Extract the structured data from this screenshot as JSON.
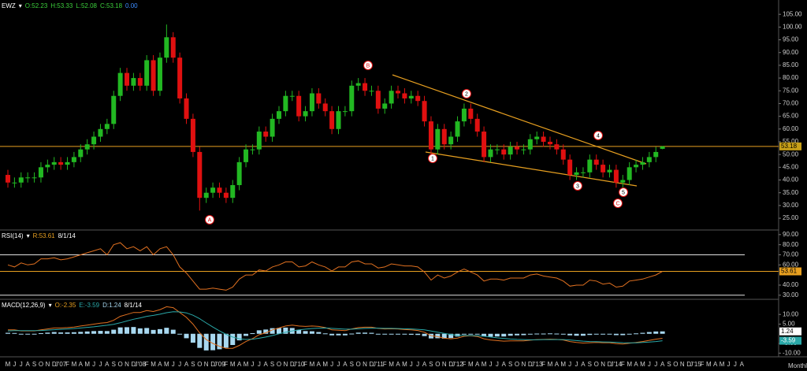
{
  "chart_data": [
    {
      "type": "candlestick",
      "symbol": "EWZ",
      "header": [
        {
          "text": "EWZ",
          "color": "#ffffff"
        },
        {
          "text": "▾",
          "color": "#ffffff"
        },
        {
          "text": "O:52.23",
          "color": "#3cd03c"
        },
        {
          "text": "H:53.33",
          "color": "#3cd03c"
        },
        {
          "text": "L:52.08",
          "color": "#3cd03c"
        },
        {
          "text": "C:53.18",
          "color": "#3cd03c"
        },
        {
          "text": "0.00",
          "color": "#3c8cff"
        }
      ],
      "up_color": "#22b822",
      "down_color": "#e01010",
      "last_line_color": "#e8a020",
      "open": [
        42,
        39,
        39,
        41,
        41,
        41,
        45,
        46,
        47,
        46,
        47,
        49,
        52,
        54,
        57,
        60,
        62,
        73,
        82,
        77,
        80,
        77,
        87,
        75,
        88,
        96,
        88,
        72,
        64,
        51,
        33,
        35,
        37,
        35,
        33,
        38,
        47,
        52,
        52,
        59,
        57,
        64,
        67,
        73,
        73,
        65,
        67,
        74,
        70,
        67,
        60,
        67,
        67,
        77,
        78,
        75,
        75,
        68,
        70,
        75,
        74,
        72,
        73,
        71,
        63,
        52,
        60,
        54,
        57,
        63,
        68,
        64,
        59,
        49,
        52,
        52,
        50,
        53,
        52,
        52,
        56,
        57,
        55,
        54,
        52,
        48,
        42,
        43,
        43,
        48,
        46,
        43,
        44,
        39,
        40,
        45,
        46,
        47,
        49,
        52.23
      ],
      "high": [
        44,
        41,
        43,
        43,
        43,
        47,
        48,
        49,
        49,
        49,
        51,
        54,
        56,
        59,
        62,
        64,
        75,
        84,
        84,
        82,
        82,
        89,
        89,
        90,
        101,
        98,
        90,
        74,
        66,
        53,
        37,
        39,
        39,
        37,
        40,
        49,
        54,
        54,
        61,
        61,
        66,
        69,
        75,
        75,
        75,
        69,
        76,
        76,
        72,
        69,
        69,
        69,
        79,
        80,
        80,
        77,
        77,
        72,
        77,
        77,
        76,
        75,
        75,
        73,
        65,
        62,
        62,
        59,
        65,
        70,
        70,
        66,
        61,
        54,
        54,
        54,
        55,
        55,
        54,
        58,
        59,
        59,
        57,
        56,
        54,
        50,
        45,
        45,
        50,
        50,
        48,
        46,
        46,
        42,
        47,
        48,
        49,
        51,
        53,
        53.33
      ],
      "low": [
        37,
        37,
        37,
        39,
        39,
        39,
        43,
        44,
        44,
        44,
        45,
        47,
        50,
        52,
        55,
        58,
        60,
        71,
        75,
        75,
        75,
        75,
        73,
        73,
        86,
        86,
        70,
        62,
        49,
        28,
        31,
        33,
        33,
        31,
        31,
        36,
        45,
        50,
        50,
        55,
        55,
        62,
        65,
        71,
        63,
        63,
        65,
        68,
        65,
        58,
        58,
        65,
        65,
        75,
        73,
        73,
        66,
        66,
        68,
        72,
        70,
        70,
        69,
        61,
        50,
        50,
        52,
        52,
        55,
        61,
        62,
        57,
        47,
        47,
        50,
        48,
        48,
        50,
        50,
        50,
        54,
        53,
        52,
        50,
        46,
        40,
        40,
        41,
        41,
        44,
        41,
        41,
        37,
        37,
        38,
        43,
        44,
        45,
        47,
        52.08
      ],
      "close": [
        39,
        39,
        41,
        41,
        41,
        45,
        46,
        47,
        46,
        47,
        49,
        52,
        54,
        57,
        60,
        62,
        73,
        82,
        77,
        80,
        77,
        87,
        75,
        88,
        96,
        88,
        72,
        64,
        51,
        33,
        35,
        37,
        35,
        33,
        38,
        47,
        52,
        52,
        59,
        57,
        64,
        67,
        73,
        73,
        65,
        67,
        74,
        70,
        67,
        60,
        67,
        67,
        77,
        78,
        75,
        75,
        68,
        70,
        75,
        74,
        72,
        73,
        71,
        63,
        52,
        60,
        54,
        57,
        63,
        68,
        64,
        59,
        49,
        52,
        52,
        50,
        53,
        52,
        52,
        56,
        57,
        55,
        54,
        52,
        48,
        42,
        43,
        43,
        48,
        46,
        43,
        44,
        39,
        40,
        45,
        46,
        47,
        49,
        51,
        53.18
      ],
      "ylim": [
        21,
        110
      ],
      "yticks": [
        {
          "value": 105,
          "label": "105.00"
        },
        {
          "value": 100,
          "label": "100.00"
        },
        {
          "value": 95,
          "label": "95.00"
        },
        {
          "value": 90,
          "label": "90.00"
        },
        {
          "value": 85,
          "label": "85.00"
        },
        {
          "value": 80,
          "label": "80.00"
        },
        {
          "value": 75,
          "label": "75.00"
        },
        {
          "value": 70,
          "label": "70.00"
        },
        {
          "value": 65,
          "label": "65.00"
        },
        {
          "value": 60,
          "label": "60.00"
        },
        {
          "value": 55,
          "label": "55.00"
        },
        {
          "value": 50,
          "label": "50.00"
        },
        {
          "value": 45,
          "label": "45.00"
        },
        {
          "value": 40,
          "label": "40.00"
        },
        {
          "value": 35,
          "label": "35.00"
        },
        {
          "value": 30,
          "label": "30.00"
        },
        {
          "value": 25,
          "label": "25.00"
        }
      ],
      "annotations": [
        "A",
        "B",
        "C",
        "1",
        "2",
        "3",
        "4",
        "5"
      ]
    },
    {
      "type": "line",
      "header": [
        {
          "text": "RSI(14)",
          "color": "#ffffff"
        },
        {
          "text": "▾",
          "color": "#ffffff"
        },
        {
          "text": "R:53.61",
          "color": "#e8a020"
        },
        {
          "text": "8/1/14",
          "color": "#ffffff"
        }
      ],
      "series": [
        {
          "name": "RSI(14)",
          "color": "#e07020",
          "values": [
            60,
            58,
            62,
            60,
            61,
            66,
            66,
            67,
            65,
            66,
            68,
            70,
            72,
            74,
            76,
            70,
            80,
            82,
            76,
            78,
            74,
            78,
            70,
            76,
            78,
            70,
            58,
            52,
            44,
            36,
            36,
            37,
            36,
            35,
            38,
            46,
            50,
            50,
            55,
            54,
            58,
            60,
            63,
            63,
            58,
            59,
            63,
            60,
            58,
            54,
            58,
            58,
            63,
            64,
            61,
            61,
            57,
            58,
            61,
            60,
            59,
            59,
            58,
            53,
            45,
            50,
            47,
            49,
            53,
            56,
            53,
            50,
            44,
            46,
            46,
            45,
            47,
            47,
            47,
            50,
            51,
            49,
            48,
            47,
            44,
            39,
            40,
            40,
            45,
            44,
            41,
            42,
            38,
            39,
            44,
            45,
            46,
            48,
            50,
            53.61
          ]
        }
      ],
      "ylim": [
        27.5,
        93
      ],
      "yticks": [
        {
          "value": 90,
          "label": "90.00"
        },
        {
          "value": 80,
          "label": "80.00"
        },
        {
          "value": 70,
          "label": "70.00"
        },
        {
          "value": 60,
          "label": "60.00"
        },
        {
          "value": 40,
          "label": "40.00"
        },
        {
          "value": 30,
          "label": "30.00"
        }
      ],
      "levels": [
        70,
        30
      ]
    },
    {
      "type": "macd",
      "header": [
        {
          "text": "MACD(12,26,9)",
          "color": "#ffffff"
        },
        {
          "text": "▾",
          "color": "#ffffff"
        },
        {
          "text": "O:-2.35",
          "color": "#e8a020"
        },
        {
          "text": "E:-3.59",
          "color": "#2aa8a8"
        },
        {
          "text": "D:1.24",
          "color": "#a8d8f0"
        },
        {
          "text": "8/1/14",
          "color": "#ffffff"
        }
      ],
      "series": [
        {
          "name": "MACD",
          "color": "#e07020",
          "values": [
            2,
            2,
            1.5,
            1.5,
            1.5,
            2,
            2.5,
            3,
            3,
            3.2,
            3.5,
            4,
            4.5,
            5,
            5.5,
            5.8,
            7,
            9,
            10,
            11,
            11,
            12,
            11.5,
            12.5,
            14,
            13.5,
            11,
            8.5,
            5,
            0.5,
            -3,
            -5,
            -6.5,
            -7.5,
            -7.5,
            -6,
            -4,
            -2.5,
            -0.5,
            0.5,
            2,
            3,
            4,
            4.5,
            4,
            3.8,
            4,
            3.8,
            3.2,
            2,
            1.8,
            1.6,
            2.5,
            3.2,
            3.4,
            3.4,
            2.8,
            2.5,
            2.6,
            2.5,
            2.2,
            2,
            1.7,
            0.8,
            -1,
            -1.5,
            -2.3,
            -2.6,
            -2.2,
            -1.3,
            -1,
            -1.4,
            -2.6,
            -3.2,
            -3.5,
            -3.8,
            -3.7,
            -3.7,
            -3.7,
            -3.3,
            -3,
            -2.9,
            -2.8,
            -2.9,
            -3.2,
            -4,
            -4.5,
            -4.8,
            -4.6,
            -4.5,
            -4.6,
            -4.6,
            -5.1,
            -5.3,
            -4.9,
            -4.5,
            -4,
            -3.4,
            -2.8,
            -2.35
          ]
        },
        {
          "name": "Signal",
          "color": "#2aa8a8",
          "values": [
            1.5,
            1.6,
            1.6,
            1.6,
            1.6,
            1.7,
            1.9,
            2.1,
            2.3,
            2.5,
            2.7,
            3,
            3.3,
            3.6,
            4,
            4.4,
            4.9,
            5.7,
            6.6,
            7.5,
            8.2,
            9,
            9.5,
            10.1,
            10.9,
            11.4,
            11.3,
            10.8,
            9.6,
            7.8,
            5.6,
            3.5,
            1.5,
            -0.3,
            -1.7,
            -2.6,
            -2.9,
            -2.8,
            -2.3,
            -1.7,
            -0.9,
            0,
            0.8,
            1.5,
            2,
            2.4,
            2.7,
            2.9,
            3,
            2.8,
            2.6,
            2.4,
            2.4,
            2.6,
            2.8,
            2.9,
            2.9,
            2.8,
            2.8,
            2.7,
            2.6,
            2.5,
            2.3,
            2,
            1.4,
            0.8,
            0.2,
            -0.4,
            -0.8,
            -0.9,
            -0.9,
            -1,
            -1.3,
            -1.7,
            -2.1,
            -2.4,
            -2.7,
            -2.9,
            -3,
            -3.1,
            -3.1,
            -3,
            -3,
            -3,
            -3,
            -3.2,
            -3.5,
            -3.8,
            -4,
            -4.1,
            -4.2,
            -4.3,
            -4.4,
            -4.6,
            -4.7,
            -4.7,
            -4.5,
            -4.3,
            -4,
            -3.59
          ]
        },
        {
          "name": "Histogram",
          "color": "#a8d8f0",
          "values": [
            0.5,
            0.4,
            -0.1,
            -0.1,
            -0.1,
            0.3,
            0.6,
            0.9,
            0.7,
            0.7,
            0.8,
            1,
            1.2,
            1.4,
            1.5,
            1.4,
            2.1,
            3.3,
            3.4,
            3.5,
            2.8,
            3,
            2,
            2.4,
            3.1,
            2.1,
            -0.3,
            -2.3,
            -4.6,
            -7.3,
            -8.6,
            -8.5,
            -8,
            -7.2,
            -5.8,
            -3.4,
            -1.1,
            0.3,
            1.8,
            2.2,
            2.9,
            3,
            3.2,
            3,
            2,
            1.4,
            1.3,
            0.9,
            0.2,
            -0.8,
            -0.8,
            -0.8,
            0.1,
            0.6,
            0.6,
            0.5,
            -0.1,
            -0.3,
            -0.2,
            -0.2,
            -0.4,
            -0.5,
            -0.6,
            -1.2,
            -2.4,
            -2.3,
            -2.5,
            -2.2,
            -1.4,
            -0.4,
            -0.1,
            -0.4,
            -1.3,
            -1.5,
            -1.4,
            -1.4,
            -1,
            -0.8,
            -0.7,
            -0.2,
            0.1,
            0.1,
            0.2,
            0.1,
            -0.2,
            -0.8,
            -1,
            -1,
            -0.6,
            -0.4,
            -0.4,
            -0.3,
            -0.7,
            -0.7,
            -0.2,
            0.2,
            0.5,
            0.9,
            1.2,
            1.24
          ]
        }
      ],
      "ylim": [
        -11.5,
        17
      ],
      "yticks": [
        {
          "value": 10,
          "label": "10.00"
        },
        {
          "value": 5,
          "label": "5.00"
        },
        {
          "value": -5,
          "label": "-5.00"
        },
        {
          "value": -10,
          "label": "-10.00"
        }
      ]
    }
  ],
  "time_axis": {
    "period": "Monthly",
    "labels": [
      "M",
      "J",
      "J",
      "A",
      "S",
      "O",
      "N",
      "D",
      "J'07",
      "F",
      "M",
      "A",
      "M",
      "J",
      "J",
      "A",
      "S",
      "O",
      "N",
      "D",
      "J'08",
      "F",
      "M",
      "A",
      "M",
      "J",
      "J",
      "A",
      "S",
      "O",
      "N",
      "D",
      "J'09",
      "F",
      "M",
      "A",
      "M",
      "J",
      "J",
      "A",
      "S",
      "O",
      "N",
      "D",
      "J'10",
      "F",
      "M",
      "A",
      "M",
      "J",
      "J",
      "A",
      "S",
      "O",
      "N",
      "D",
      "J'11",
      "F",
      "M",
      "A",
      "M",
      "J",
      "J",
      "A",
      "S",
      "O",
      "N",
      "D",
      "J'12",
      "F",
      "M",
      "A",
      "M",
      "J",
      "J",
      "A",
      "S",
      "O",
      "N",
      "D",
      "J'13",
      "F",
      "M",
      "A",
      "M",
      "J",
      "J",
      "A",
      "S",
      "O",
      "N",
      "D",
      "J'14",
      "F",
      "M",
      "A",
      "M",
      "J",
      "J",
      "A",
      "S",
      "O",
      "N",
      "D",
      "J'15",
      "F",
      "M",
      "A",
      "M",
      "J",
      "J",
      "A"
    ]
  }
}
